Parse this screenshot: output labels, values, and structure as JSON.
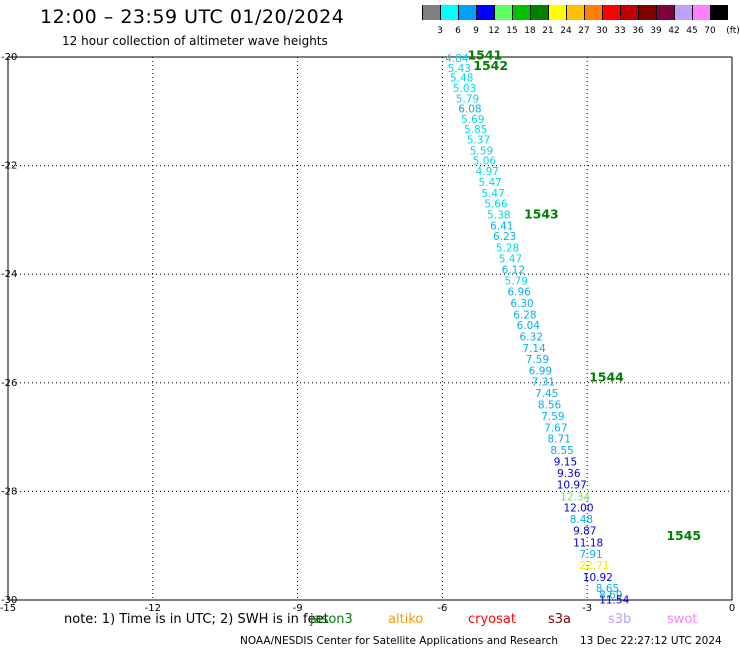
{
  "header": {
    "title": "12:00 – 23:59 UTC 01/20/2024",
    "subtitle": "12 hour collection of altimeter wave heights"
  },
  "colorbar": {
    "unit": "(ft)",
    "bins": [
      {
        "label": "3",
        "color": "#808080"
      },
      {
        "label": "6",
        "color": "#00ffff"
      },
      {
        "label": "9",
        "color": "#00a0ff"
      },
      {
        "label": "12",
        "color": "#0000ff"
      },
      {
        "label": "15",
        "color": "#60ff60"
      },
      {
        "label": "18",
        "color": "#00c000"
      },
      {
        "label": "21",
        "color": "#008000"
      },
      {
        "label": "24",
        "color": "#ffff00"
      },
      {
        "label": "27",
        "color": "#ffc000"
      },
      {
        "label": "30",
        "color": "#ff8000"
      },
      {
        "label": "33",
        "color": "#ff0000"
      },
      {
        "label": "36",
        "color": "#c00000"
      },
      {
        "label": "39",
        "color": "#800000"
      },
      {
        "label": "42",
        "color": "#800040"
      },
      {
        "label": "45",
        "color": "#c0a0ff"
      },
      {
        "label": "70",
        "color": "#ff80ff"
      },
      {
        "label": "",
        "color": "#000000"
      }
    ]
  },
  "chart_data": {
    "type": "scatter",
    "xlim": [
      -15,
      0
    ],
    "ylim": [
      -30,
      -20
    ],
    "x_ticks": [
      "-15",
      "-12",
      "-9",
      "-6",
      "-3",
      "0"
    ],
    "y_ticks": [
      "-20",
      "-22",
      "-24",
      "-26",
      "-28",
      "-30"
    ],
    "grid": true,
    "points": [
      {
        "x": -5.7,
        "y": -20.02,
        "label": "4.84",
        "color": "#00d8e8"
      },
      {
        "x": -5.65,
        "y": -20.2,
        "label": "5.43",
        "color": "#00d8e8"
      },
      {
        "x": -5.6,
        "y": -20.38,
        "label": "5.48",
        "color": "#00d8e8"
      },
      {
        "x": -5.54,
        "y": -20.57,
        "label": "5.03",
        "color": "#00d8e8"
      },
      {
        "x": -5.48,
        "y": -20.76,
        "label": "5.79",
        "color": "#00d8e8"
      },
      {
        "x": -5.43,
        "y": -20.95,
        "label": "6.08",
        "color": "#00b0f0"
      },
      {
        "x": -5.37,
        "y": -21.14,
        "label": "5.69",
        "color": "#00d8e8"
      },
      {
        "x": -5.31,
        "y": -21.33,
        "label": "5.85",
        "color": "#00d8e8"
      },
      {
        "x": -5.25,
        "y": -21.52,
        "label": "5.37",
        "color": "#00d8e8"
      },
      {
        "x": -5.19,
        "y": -21.72,
        "label": "5.59",
        "color": "#00d8e8"
      },
      {
        "x": -5.13,
        "y": -21.91,
        "label": "5.06",
        "color": "#00d8e8"
      },
      {
        "x": -5.07,
        "y": -22.1,
        "label": "4.97",
        "color": "#00d8e8"
      },
      {
        "x": -5.01,
        "y": -22.3,
        "label": "5.47",
        "color": "#00d8e8"
      },
      {
        "x": -4.95,
        "y": -22.5,
        "label": "5.47",
        "color": "#00d8e8"
      },
      {
        "x": -4.89,
        "y": -22.7,
        "label": "5.66",
        "color": "#00d8e8"
      },
      {
        "x": -4.83,
        "y": -22.9,
        "label": "5.38",
        "color": "#00d8e8"
      },
      {
        "x": -4.77,
        "y": -23.1,
        "label": "6.41",
        "color": "#00b0f0"
      },
      {
        "x": -4.71,
        "y": -23.3,
        "label": "6.23",
        "color": "#00b0f0"
      },
      {
        "x": -4.65,
        "y": -23.51,
        "label": "5.28",
        "color": "#00d8e8"
      },
      {
        "x": -4.59,
        "y": -23.71,
        "label": "5.47",
        "color": "#00d8e8"
      },
      {
        "x": -4.53,
        "y": -23.91,
        "label": "6.12",
        "color": "#00b0f0"
      },
      {
        "x": -4.47,
        "y": -24.12,
        "label": "5.79",
        "color": "#00d8e8"
      },
      {
        "x": -4.41,
        "y": -24.32,
        "label": "6.96",
        "color": "#00b0f0"
      },
      {
        "x": -4.35,
        "y": -24.53,
        "label": "6.30",
        "color": "#00b0f0"
      },
      {
        "x": -4.29,
        "y": -24.74,
        "label": "6.28",
        "color": "#00b0f0"
      },
      {
        "x": -4.22,
        "y": -24.94,
        "label": "6.04",
        "color": "#00b0f0"
      },
      {
        "x": -4.16,
        "y": -25.15,
        "label": "6.32",
        "color": "#00b0f0"
      },
      {
        "x": -4.1,
        "y": -25.36,
        "label": "7.14",
        "color": "#00b0f0"
      },
      {
        "x": -4.03,
        "y": -25.56,
        "label": "7.59",
        "color": "#00b0f0"
      },
      {
        "x": -3.97,
        "y": -25.77,
        "label": "6.99",
        "color": "#00b0f0"
      },
      {
        "x": -3.91,
        "y": -25.98,
        "label": "7.31",
        "color": "#00b0f0"
      },
      {
        "x": -3.84,
        "y": -26.19,
        "label": "7.45",
        "color": "#00b0f0"
      },
      {
        "x": -3.78,
        "y": -26.4,
        "label": "8.56",
        "color": "#00b0f0"
      },
      {
        "x": -3.71,
        "y": -26.61,
        "label": "7.59",
        "color": "#00b0f0"
      },
      {
        "x": -3.65,
        "y": -26.82,
        "label": "7.67",
        "color": "#00b0f0"
      },
      {
        "x": -3.58,
        "y": -27.03,
        "label": "8.71",
        "color": "#00b0f0"
      },
      {
        "x": -3.52,
        "y": -27.24,
        "label": "8.55",
        "color": "#00b0f0"
      },
      {
        "x": -3.45,
        "y": -27.45,
        "label": "9.15",
        "color": "#0000e0"
      },
      {
        "x": -3.38,
        "y": -27.66,
        "label": "9.36",
        "color": "#0000e0"
      },
      {
        "x": -3.32,
        "y": -27.87,
        "label": "10.97",
        "color": "#0000e0"
      },
      {
        "x": -3.25,
        "y": -28.09,
        "label": "12.34",
        "color": "#70e070"
      },
      {
        "x": -3.18,
        "y": -28.3,
        "label": "12.00",
        "color": "#0000e0"
      },
      {
        "x": -3.12,
        "y": -28.51,
        "label": "8.48",
        "color": "#00b0f0"
      },
      {
        "x": -3.05,
        "y": -28.72,
        "label": "9.87",
        "color": "#0000e0"
      },
      {
        "x": -2.98,
        "y": -28.94,
        "label": "11.18",
        "color": "#0000e0"
      },
      {
        "x": -2.92,
        "y": -29.15,
        "label": "7.91",
        "color": "#00b0f0"
      },
      {
        "x": -2.85,
        "y": -29.36,
        "label": "22.71",
        "color": "#f0f000"
      },
      {
        "x": -2.78,
        "y": -29.58,
        "label": "10.92",
        "color": "#0000e0"
      },
      {
        "x": -2.58,
        "y": -29.78,
        "label": "8.65",
        "color": "#00b0f0"
      },
      {
        "x": -2.51,
        "y": -29.9,
        "label": "8.69",
        "color": "#00b0f0"
      },
      {
        "x": -2.44,
        "y": -29.99,
        "label": "11.54",
        "color": "#0000e0"
      }
    ],
    "annotations": [
      {
        "text": "1541",
        "x": -5.12,
        "y": -19.95,
        "color": "#008000"
      },
      {
        "text": "1542",
        "x": -5.0,
        "y": -20.15,
        "color": "#008000"
      },
      {
        "text": "1543",
        "x": -3.95,
        "y": -22.88,
        "color": "#008000"
      },
      {
        "text": "1544",
        "x": -2.6,
        "y": -25.88,
        "color": "#008000"
      },
      {
        "text": "1545",
        "x": -1.0,
        "y": -28.8,
        "color": "#008000"
      }
    ]
  },
  "footer": {
    "note": "note: 1) Time is in UTC; 2) SWH is in feet",
    "legend": [
      {
        "label": "jason3",
        "color": "#008000"
      },
      {
        "label": "altiko",
        "color": "#ff9900"
      },
      {
        "label": "cryosat",
        "color": "#ff0000"
      },
      {
        "label": "s3a",
        "color": "#800000"
      },
      {
        "label": "s3b",
        "color": "#c0a0ff"
      },
      {
        "label": "swot",
        "color": "#ff80ff"
      }
    ],
    "credit": "NOAA/NESDIS Center for Satellite Applications and Research",
    "generated": "13 Dec 22:27:12 UTC 2024"
  }
}
